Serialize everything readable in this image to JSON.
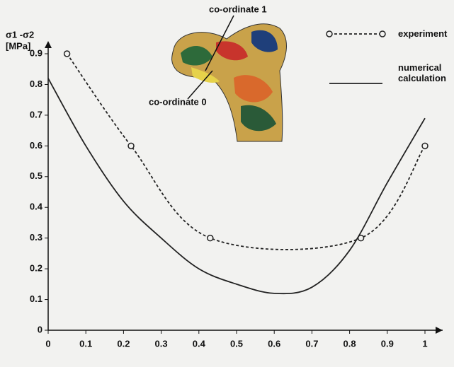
{
  "chart_data": {
    "type": "line",
    "y_label": "σ1 -σ2",
    "y_unit": "[MPa]",
    "annotations": [
      "co-ordinate 1",
      "co-ordinate 0"
    ],
    "series": [
      {
        "name": "experiment",
        "color": "#222",
        "dashed": true,
        "markers": true,
        "x": [
          0.05,
          0.22,
          0.43,
          0.83,
          1.0
        ],
        "values": [
          0.9,
          0.6,
          0.3,
          0.3,
          0.6
        ]
      },
      {
        "name": "numerical calculation",
        "color": "#222",
        "dashed": false,
        "markers": false,
        "x": [
          0,
          0.1,
          0.2,
          0.3,
          0.4,
          0.5,
          0.6,
          0.7,
          0.8,
          0.9,
          1.0
        ],
        "values": [
          0.82,
          0.6,
          0.42,
          0.3,
          0.2,
          0.15,
          0.12,
          0.14,
          0.26,
          0.48,
          0.69
        ]
      }
    ],
    "xlim": [
      0,
      1.05
    ],
    "ylim": [
      0,
      0.92
    ],
    "xticks": [
      0,
      0.1,
      0.2,
      0.3,
      0.4,
      0.5,
      0.6,
      0.7,
      0.8,
      0.9,
      1
    ],
    "yticks": [
      0,
      0.1,
      0.2,
      0.3,
      0.4,
      0.5,
      0.6,
      0.7,
      0.8,
      0.9
    ],
    "grid": false
  }
}
